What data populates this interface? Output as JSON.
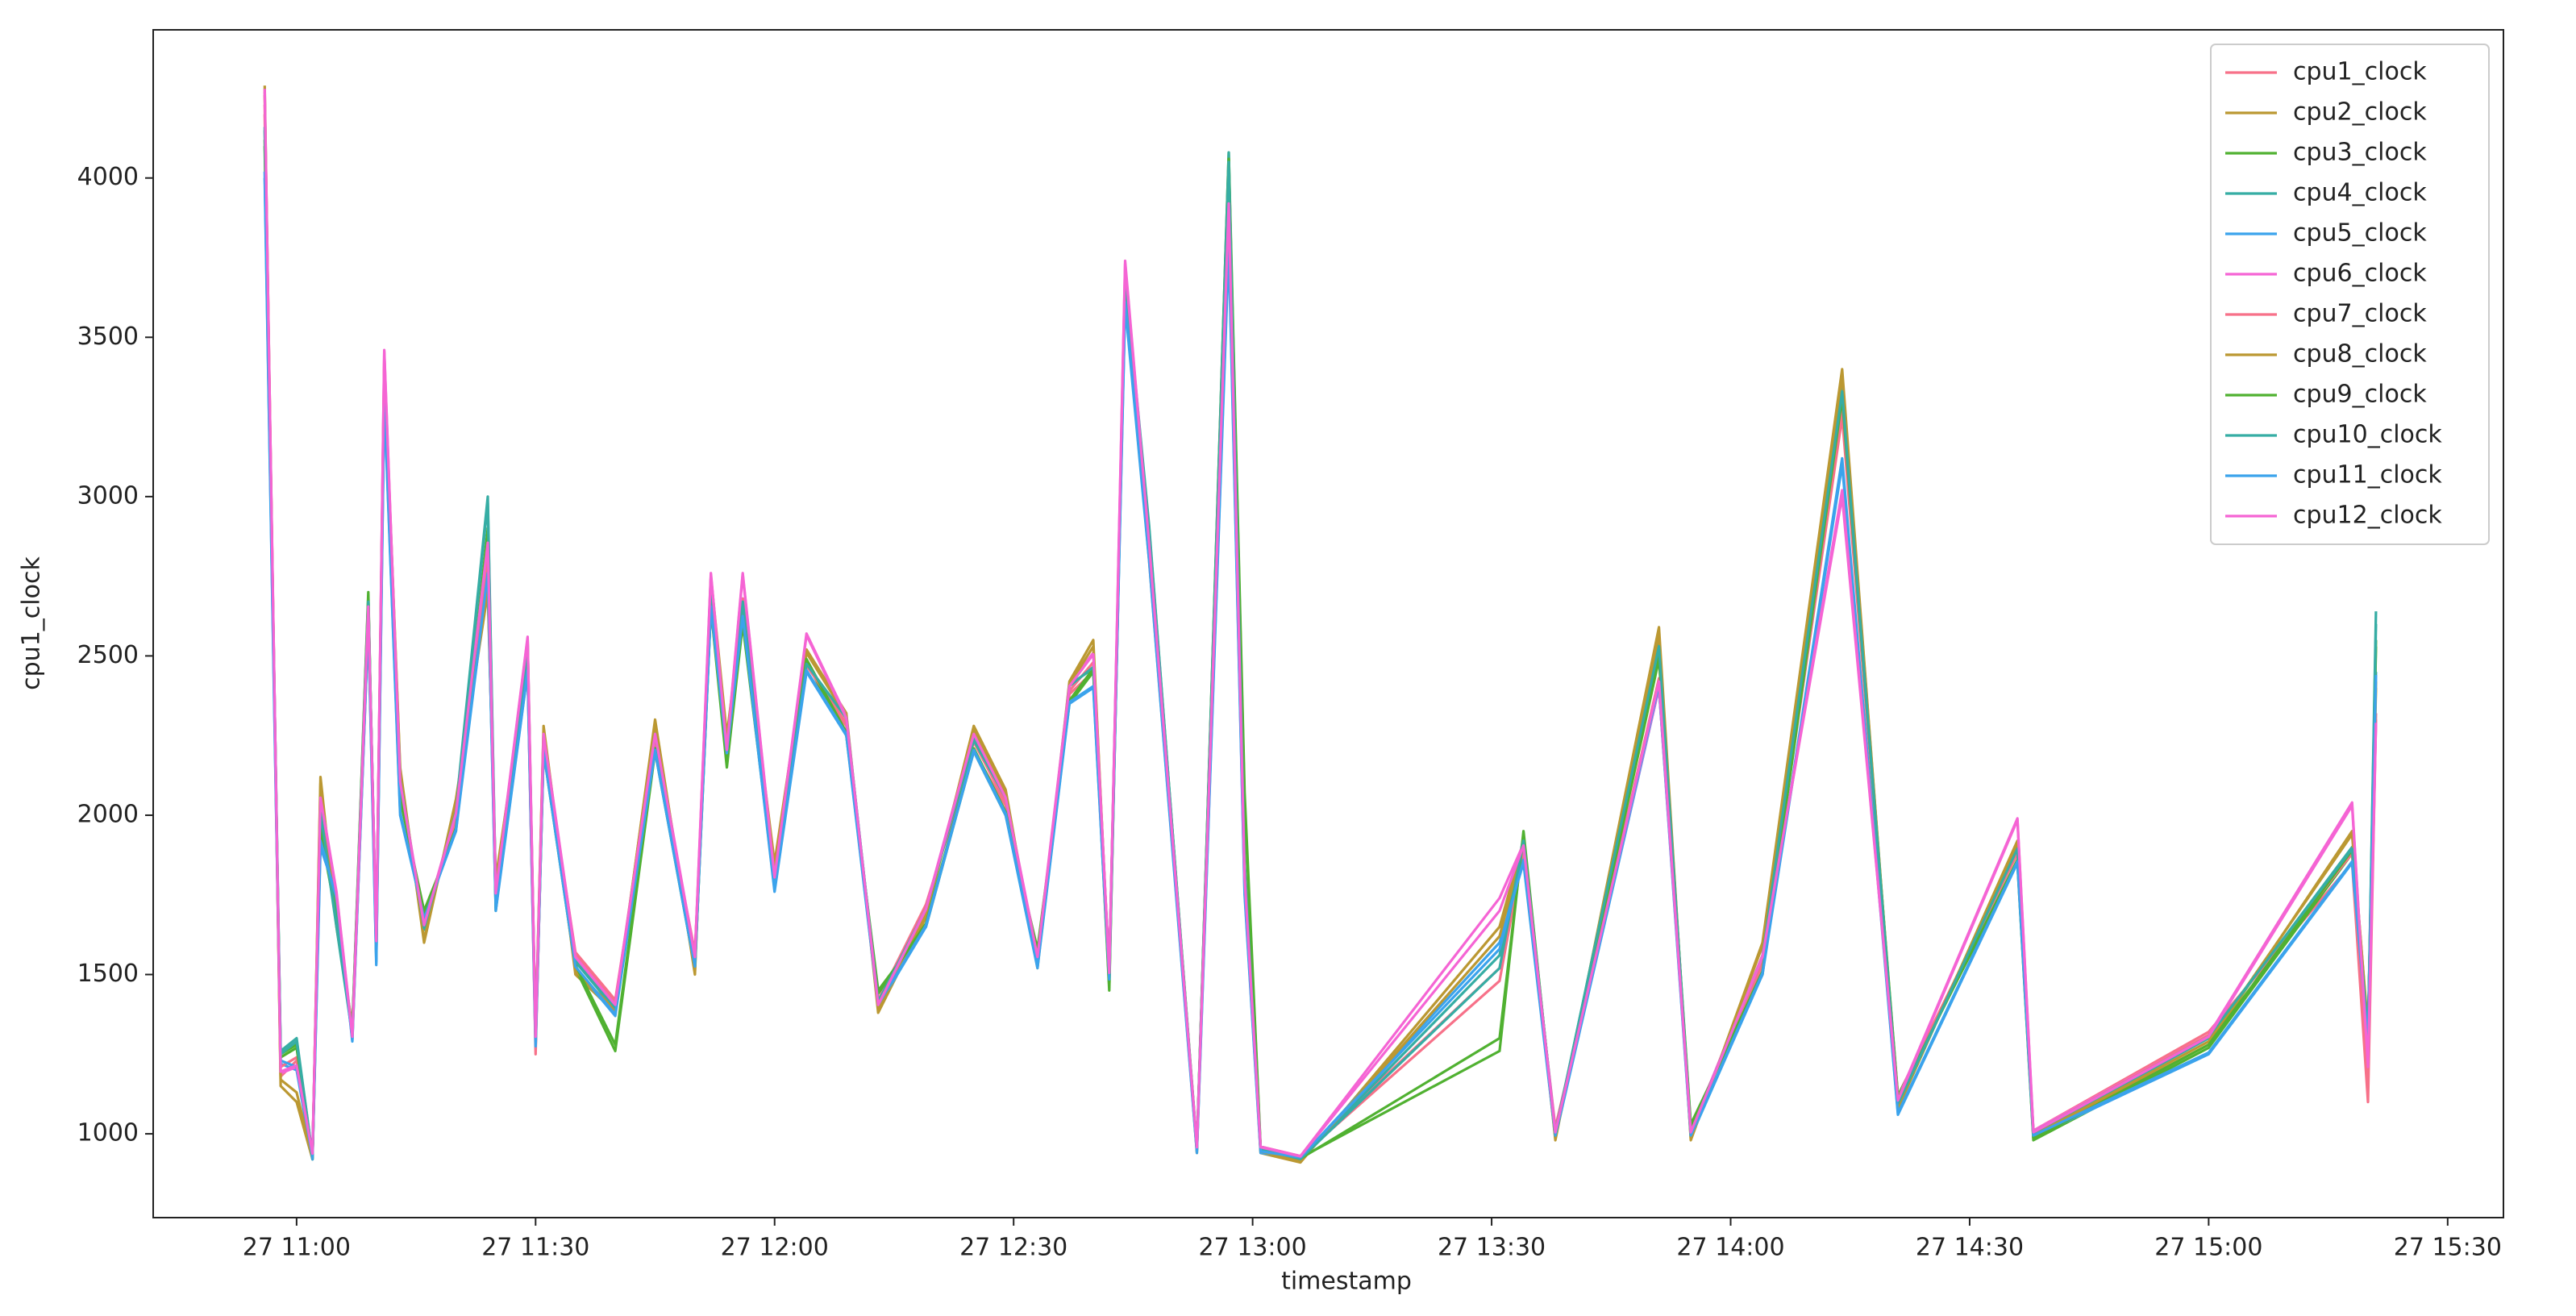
{
  "chart_data": {
    "type": "line",
    "xlabel": "timestamp",
    "ylabel": "cpu1_clock",
    "x": [
      "27 10:56",
      "27 10:58",
      "27 11:00",
      "27 11:02",
      "27 11:03",
      "27 11:05",
      "27 11:07",
      "27 11:09",
      "27 11:10",
      "27 11:11",
      "27 11:13",
      "27 11:16",
      "27 11:20",
      "27 11:24",
      "27 11:25",
      "27 11:29",
      "27 11:30",
      "27 11:31",
      "27 11:35",
      "27 11:40",
      "27 11:45",
      "27 11:50",
      "27 11:52",
      "27 11:54",
      "27 11:56",
      "27 12:00",
      "27 12:04",
      "27 12:09",
      "27 12:13",
      "27 12:19",
      "27 12:25",
      "27 12:29",
      "27 12:33",
      "27 12:37",
      "27 12:40",
      "27 12:42",
      "27 12:44",
      "27 12:47",
      "27 12:53",
      "27 12:57",
      "27 12:59",
      "27 13:01",
      "27 13:06",
      "27 13:31",
      "27 13:34",
      "27 13:38",
      "27 13:51",
      "27 13:55",
      "27 14:04",
      "27 14:14",
      "27 14:21",
      "27 14:36",
      "27 14:38",
      "27 15:00",
      "27 15:18",
      "27 15:20",
      "27 15:21"
    ],
    "series": [
      {
        "name": "cpu1_clock",
        "color": "#f77189",
        "values": [
          4200,
          1180,
          1230,
          940,
          2000,
          1720,
          1300,
          2600,
          1620,
          3400,
          2080,
          1670,
          1980,
          2800,
          1720,
          2450,
          1250,
          2230,
          1570,
          1420,
          2220,
          1570,
          2650,
          2180,
          2650,
          1820,
          2450,
          2280,
          1420,
          1720,
          2200,
          2030,
          1560,
          2380,
          2450,
          1520,
          3650,
          2800,
          960,
          3950,
          1780,
          960,
          930,
          1520,
          1880,
          1020,
          2400,
          1020,
          1530,
          3250,
          1120,
          1880,
          1010,
          1320,
          1850,
          1100,
          2300
        ]
      },
      {
        "name": "cpu2_clock",
        "color": "#bb9832",
        "values": [
          4290,
          1150,
          1100,
          920,
          2120,
          1650,
          1340,
          2620,
          1580,
          3420,
          2150,
          1600,
          2050,
          2700,
          1800,
          2480,
          1320,
          2280,
          1500,
          1380,
          2300,
          1500,
          2750,
          2250,
          2650,
          1850,
          2520,
          2320,
          1380,
          1680,
          2280,
          2080,
          1520,
          2420,
          2550,
          1480,
          3680,
          2880,
          940,
          4060,
          1850,
          940,
          910,
          1650,
          1920,
          980,
          2590,
          980,
          1600,
          3400,
          1080,
          1920,
          990,
          1280,
          1950,
          1320,
          2400
        ]
      },
      {
        "name": "cpu3_clock",
        "color": "#50b131",
        "values": [
          4100,
          1250,
          1280,
          920,
          1950,
          1680,
          1330,
          2700,
          1550,
          3350,
          2050,
          1700,
          1950,
          2900,
          1700,
          2550,
          1280,
          2200,
          1520,
          1260,
          2200,
          1520,
          2650,
          2150,
          2600,
          1780,
          2480,
          2250,
          1450,
          1650,
          2200,
          2000,
          1580,
          2350,
          2450,
          1450,
          3650,
          2900,
          960,
          4080,
          2070,
          960,
          925,
          1260,
          1950,
          990,
          2500,
          1030,
          1500,
          3300,
          1120,
          1850,
          980,
          1270,
          1880,
          1300,
          2550
        ]
      },
      {
        "name": "cpu4_clock",
        "color": "#36ada4",
        "values": [
          4150,
          1260,
          1300,
          930,
          2000,
          1650,
          1310,
          2680,
          1590,
          3380,
          2120,
          1640,
          2020,
          3000,
          1760,
          2520,
          1290,
          2240,
          1540,
          1390,
          2260,
          1540,
          2720,
          2200,
          2680,
          1790,
          2470,
          2310,
          1410,
          1710,
          2240,
          2060,
          1540,
          2410,
          2460,
          1510,
          3690,
          2910,
          950,
          4080,
          1850,
          950,
          920,
          1560,
          1930,
          1000,
          2550,
          1000,
          1560,
          3350,
          1090,
          1900,
          1000,
          1300,
          1900,
          1300,
          2640
        ]
      },
      {
        "name": "cpu5_clock",
        "color": "#3ba3ec",
        "values": [
          4000,
          1220,
          1200,
          920,
          1900,
          1750,
          1290,
          2600,
          1530,
          3300,
          2000,
          1680,
          1950,
          2750,
          1700,
          2450,
          1270,
          2200,
          1520,
          1370,
          2200,
          1520,
          2650,
          2200,
          2620,
          1760,
          2450,
          2250,
          1400,
          1650,
          2200,
          2000,
          1520,
          2350,
          2400,
          1480,
          3600,
          2800,
          940,
          3780,
          1750,
          940,
          925,
          1600,
          1850,
          990,
          2400,
          990,
          1500,
          3100,
          1060,
          1850,
          990,
          1250,
          1850,
          1280,
          2450
        ]
      },
      {
        "name": "cpu6_clock",
        "color": "#f564d4",
        "values": [
          4280,
          1190,
          1210,
          940,
          2060,
          1760,
          1310,
          2660,
          1610,
          3460,
          2110,
          1660,
          2010,
          2860,
          1760,
          2560,
          1310,
          2260,
          1560,
          1410,
          2260,
          1560,
          2760,
          2210,
          2760,
          1810,
          2570,
          2310,
          1410,
          1710,
          2260,
          2060,
          1560,
          2410,
          2510,
          1510,
          3740,
          2860,
          960,
          3900,
          1810,
          960,
          930,
          1740,
          1910,
          1010,
          2400,
          1010,
          1560,
          3000,
          1110,
          1990,
          1010,
          1310,
          2040,
          1200,
          2300
        ]
      },
      {
        "name": "cpu7_clock",
        "color": "#f77189",
        "values": [
          4230,
          1210,
          1240,
          935,
          2030,
          1710,
          1310,
          2630,
          1610,
          3430,
          2090,
          1660,
          1990,
          2830,
          1730,
          2470,
          1270,
          2240,
          1560,
          1410,
          2230,
          1560,
          2680,
          2190,
          2680,
          1810,
          2470,
          2290,
          1410,
          1710,
          2230,
          2040,
          1550,
          2390,
          2480,
          1510,
          3670,
          2830,
          955,
          3980,
          1790,
          955,
          928,
          1480,
          1890,
          1010,
          2430,
          1010,
          1540,
          3280,
          1110,
          1890,
          1005,
          1310,
          1880,
          1150,
          2320
        ]
      },
      {
        "name": "cpu8_clock",
        "color": "#bb9832",
        "values": [
          4260,
          1170,
          1130,
          925,
          2100,
          1660,
          1330,
          2610,
          1590,
          3410,
          2140,
          1610,
          2040,
          2720,
          1790,
          2490,
          1310,
          2270,
          1510,
          1390,
          2290,
          1510,
          2740,
          2240,
          2660,
          1840,
          2510,
          2310,
          1390,
          1690,
          2270,
          2070,
          1530,
          2410,
          2530,
          1490,
          3670,
          2870,
          945,
          4040,
          1840,
          945,
          915,
          1620,
          1910,
          985,
          2570,
          985,
          1590,
          3380,
          1090,
          1910,
          995,
          1290,
          1940,
          1330,
          2420
        ]
      },
      {
        "name": "cpu9_clock",
        "color": "#50b131",
        "values": [
          4120,
          1240,
          1270,
          925,
          1970,
          1690,
          1320,
          2690,
          1560,
          3360,
          2060,
          1690,
          1960,
          2880,
          1710,
          2540,
          1290,
          2210,
          1530,
          1280,
          2210,
          1530,
          2660,
          2160,
          2610,
          1790,
          2490,
          2260,
          1440,
          1660,
          2210,
          2010,
          1570,
          2360,
          2460,
          1460,
          3660,
          2890,
          955,
          4060,
          2040,
          955,
          922,
          1300,
          1940,
          995,
          2490,
          1025,
          1510,
          3310,
          1110,
          1860,
          985,
          1280,
          1890,
          1310,
          2530
        ]
      },
      {
        "name": "cpu10_clock",
        "color": "#36ada4",
        "values": [
          4160,
          1250,
          1290,
          932,
          2010,
          1660,
          1315,
          2670,
          1595,
          3390,
          2110,
          1645,
          2010,
          2980,
          1750,
          2510,
          1295,
          2235,
          1545,
          1395,
          2255,
          1545,
          2710,
          2195,
          2670,
          1795,
          2475,
          2305,
          1415,
          1705,
          2235,
          2055,
          1545,
          2405,
          2465,
          1505,
          3680,
          2900,
          952,
          4050,
          1840,
          952,
          921,
          1520,
          1920,
          1005,
          2530,
          1005,
          1555,
          3330,
          1095,
          1895,
          1005,
          1305,
          1895,
          1305,
          2600
        ]
      },
      {
        "name": "cpu11_clock",
        "color": "#3ba3ec",
        "values": [
          4020,
          1230,
          1210,
          925,
          1920,
          1740,
          1295,
          2610,
          1540,
          3310,
          2010,
          1675,
          1955,
          2760,
          1705,
          2455,
          1275,
          2205,
          1525,
          1375,
          2205,
          1525,
          2655,
          2195,
          2625,
          1765,
          2455,
          2255,
          1405,
          1655,
          2205,
          2005,
          1525,
          2355,
          2405,
          1485,
          3610,
          2810,
          945,
          3800,
          1760,
          945,
          926,
          1580,
          1860,
          995,
          2410,
          995,
          1505,
          3120,
          1065,
          1855,
          995,
          1255,
          1855,
          1285,
          2440
        ]
      },
      {
        "name": "cpu12_clock",
        "color": "#f564d4",
        "values": [
          4270,
          1195,
          1215,
          938,
          2055,
          1755,
          1305,
          2655,
          1605,
          3455,
          2105,
          1655,
          2005,
          2855,
          1755,
          2555,
          1305,
          2255,
          1555,
          1405,
          2255,
          1555,
          2755,
          2205,
          2755,
          1805,
          2565,
          2305,
          1405,
          1705,
          2255,
          2055,
          1555,
          2405,
          2505,
          1505,
          3730,
          2855,
          958,
          3920,
          1805,
          958,
          929,
          1700,
          1905,
          1005,
          2420,
          1005,
          1555,
          3020,
          1105,
          1985,
          1005,
          1305,
          2030,
          1210,
          2290
        ]
      }
    ],
    "xlim": [
      "27 10:42",
      "27 15:37"
    ],
    "xticks": [
      "27 11:00",
      "27 11:30",
      "27 12:00",
      "27 12:30",
      "27 13:00",
      "27 13:30",
      "27 14:00",
      "27 14:30",
      "27 15:00",
      "27 15:30"
    ],
    "ylim": [
      737,
      4465
    ],
    "yticks": [
      1000,
      1500,
      2000,
      2500,
      3000,
      3500,
      4000
    ],
    "legend": "upper right"
  }
}
